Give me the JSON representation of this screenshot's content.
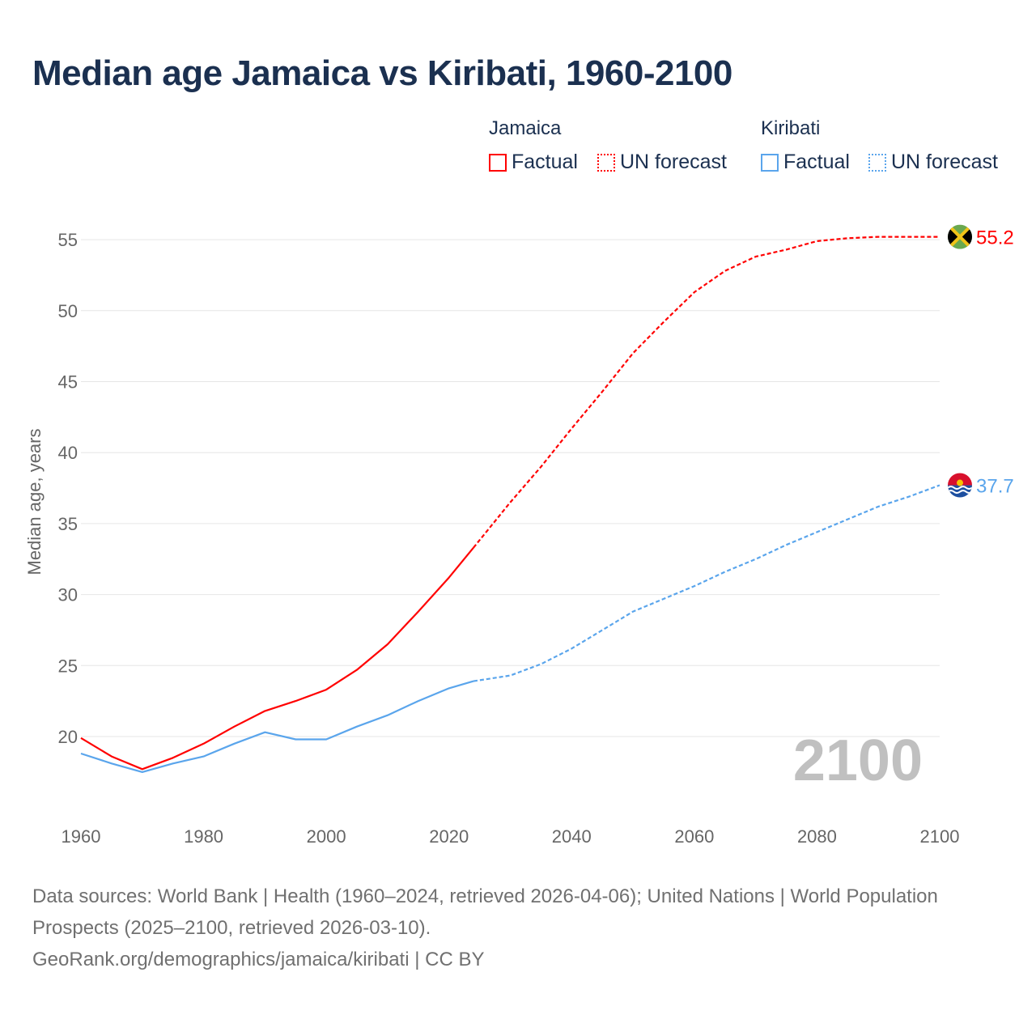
{
  "title": "Median age Jamaica vs Kiribati, 1960-2100",
  "legend": {
    "groups": [
      {
        "name": "Jamaica",
        "factual": "Factual",
        "forecast": "UN forecast",
        "color": "#ff0000"
      },
      {
        "name": "Kiribati",
        "factual": "Factual",
        "forecast": "UN forecast",
        "color": "#5aa5ec"
      }
    ]
  },
  "watermark_year": "2100",
  "end_labels": {
    "jamaica": "55.2",
    "kiribati": "37.7"
  },
  "flag_icons": {
    "jamaica": "jamaica-flag-icon",
    "kiribati": "kiribati-flag-icon"
  },
  "footer": {
    "line1": "Data sources: World Bank | Health (1960–2024, retrieved 2026-04-06); United Nations | World Population Prospects (2025–2100, retrieved 2026-03-10).",
    "line2": "GeoRank.org/demographics/jamaica/kiribati | CC BY"
  },
  "chart_data": {
    "type": "line",
    "title": "Median age Jamaica vs Kiribati, 1960-2100",
    "xlabel": "",
    "ylabel": "Median age, years",
    "xlim": [
      1960,
      2100
    ],
    "ylim": [
      15,
      57
    ],
    "xticks": [
      "1960",
      "1980",
      "2000",
      "2020",
      "2040",
      "2060",
      "2080",
      "2100"
    ],
    "yticks": [
      "20",
      "25",
      "30",
      "35",
      "40",
      "45",
      "50",
      "55"
    ],
    "grid": true,
    "legend_position": "top-right",
    "series": [
      {
        "name": "Jamaica Factual",
        "color": "#ff0000",
        "style": "solid",
        "x": [
          1960,
          1965,
          1970,
          1975,
          1980,
          1985,
          1990,
          1995,
          2000,
          2005,
          2010,
          2015,
          2020,
          2024
        ],
        "y": [
          19.9,
          18.6,
          17.7,
          18.5,
          19.5,
          20.7,
          21.8,
          22.5,
          23.3,
          24.7,
          26.5,
          28.8,
          31.2,
          33.3
        ]
      },
      {
        "name": "Jamaica UN forecast",
        "color": "#ff0000",
        "style": "dashed",
        "x": [
          2024,
          2030,
          2035,
          2040,
          2045,
          2050,
          2055,
          2060,
          2065,
          2070,
          2075,
          2080,
          2085,
          2090,
          2095,
          2100
        ],
        "y": [
          33.3,
          36.5,
          39.0,
          41.7,
          44.3,
          47.0,
          49.2,
          51.3,
          52.8,
          53.8,
          54.3,
          54.9,
          55.1,
          55.2,
          55.2,
          55.2
        ]
      },
      {
        "name": "Kiribati Factual",
        "color": "#5aa5ec",
        "style": "solid",
        "x": [
          1960,
          1965,
          1970,
          1975,
          1980,
          1985,
          1990,
          1995,
          2000,
          2005,
          2010,
          2015,
          2020,
          2024
        ],
        "y": [
          18.8,
          18.1,
          17.5,
          18.1,
          18.6,
          19.5,
          20.3,
          19.8,
          19.8,
          20.7,
          21.5,
          22.5,
          23.4,
          23.9
        ]
      },
      {
        "name": "Kiribati UN forecast",
        "color": "#5aa5ec",
        "style": "dashed",
        "x": [
          2024,
          2030,
          2035,
          2040,
          2045,
          2050,
          2055,
          2060,
          2065,
          2070,
          2075,
          2080,
          2085,
          2090,
          2095,
          2100
        ],
        "y": [
          23.9,
          24.3,
          25.1,
          26.2,
          27.5,
          28.8,
          29.7,
          30.6,
          31.6,
          32.5,
          33.5,
          34.4,
          35.3,
          36.2,
          36.9,
          37.7
        ]
      }
    ]
  }
}
